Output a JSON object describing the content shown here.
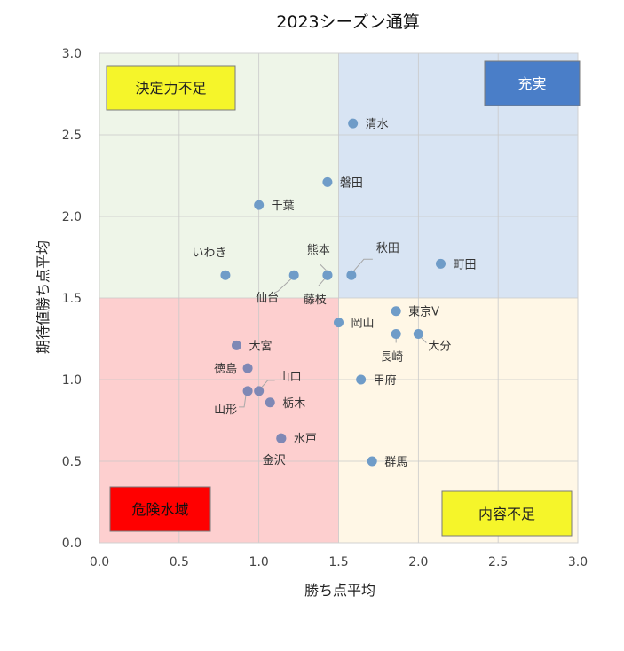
{
  "chart_data": {
    "type": "scatter",
    "title": "2023シーズン通算",
    "xlabel": "勝ち点平均",
    "ylabel": "期待値勝ち点平均",
    "xlim": [
      0,
      3
    ],
    "ylim": [
      0,
      3
    ],
    "xticks": [
      "0.0",
      "0.5",
      "1.0",
      "1.5",
      "2.0",
      "2.5",
      "3.0"
    ],
    "yticks": [
      "0.0",
      "0.5",
      "1.0",
      "1.5",
      "2.0",
      "2.5",
      "3.0"
    ],
    "grid": true,
    "divider": {
      "x": 1.5,
      "y": 1.5
    },
    "quadrants": [
      {
        "label": "決定力不足",
        "color": "#eef5e8",
        "box_color": "#f5f52a",
        "text_color": "#222222"
      },
      {
        "label": "充実",
        "color": "#d8e4f3",
        "box_color": "#4a7ec8",
        "text_color": "#ffffff"
      },
      {
        "label": "危険水域",
        "color": "#fdcfcf",
        "box_color": "#ff0000",
        "text_color": "#111111"
      },
      {
        "label": "内容不足",
        "color": "#fff7e6",
        "box_color": "#f5f52a",
        "text_color": "#222222"
      }
    ],
    "points": [
      {
        "name": "清水",
        "x": 1.59,
        "y": 2.57
      },
      {
        "name": "磐田",
        "x": 1.43,
        "y": 2.21
      },
      {
        "name": "千葉",
        "x": 1.0,
        "y": 2.07
      },
      {
        "name": "秋田",
        "x": 1.58,
        "y": 1.64
      },
      {
        "name": "町田",
        "x": 2.14,
        "y": 1.71
      },
      {
        "name": "熊本",
        "x": 1.43,
        "y": 1.64
      },
      {
        "name": "いわき",
        "x": 0.79,
        "y": 1.64
      },
      {
        "name": "仙台",
        "x": 1.22,
        "y": 1.64
      },
      {
        "name": "藤枝",
        "x": 1.43,
        "y": 1.64
      },
      {
        "name": "東京V",
        "x": 1.86,
        "y": 1.42
      },
      {
        "name": "岡山",
        "x": 1.5,
        "y": 1.35
      },
      {
        "name": "長崎",
        "x": 1.86,
        "y": 1.28
      },
      {
        "name": "大分",
        "x": 2.0,
        "y": 1.28
      },
      {
        "name": "大宮",
        "x": 0.86,
        "y": 1.21
      },
      {
        "name": "徳島",
        "x": 0.93,
        "y": 1.07
      },
      {
        "name": "甲府",
        "x": 1.64,
        "y": 1.0
      },
      {
        "name": "山口",
        "x": 1.0,
        "y": 0.93
      },
      {
        "name": "山形",
        "x": 0.93,
        "y": 0.93
      },
      {
        "name": "栃木",
        "x": 1.07,
        "y": 0.86
      },
      {
        "name": "水戸",
        "x": 1.14,
        "y": 0.64
      },
      {
        "name": "金沢",
        "x": 1.14,
        "y": 0.64
      },
      {
        "name": "群馬",
        "x": 1.71,
        "y": 0.5
      }
    ],
    "point_color": "#6f9cc8",
    "point_color_low": "#7f88b5"
  }
}
